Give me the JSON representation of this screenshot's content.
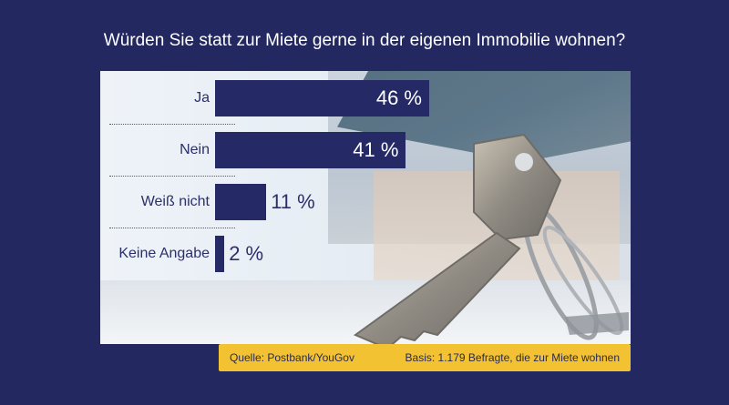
{
  "title": "Würden Sie statt zur Miete gerne in der eigenen Immobilie wohnen?",
  "chart_data": {
    "type": "bar",
    "orientation": "horizontal",
    "categories": [
      "Ja",
      "Nein",
      "Weiß nicht",
      "Keine Angabe"
    ],
    "values": [
      46,
      41,
      11,
      2
    ],
    "value_labels": [
      "46 %",
      "41 %",
      "11 %",
      "2 %"
    ],
    "unit": "%",
    "xlim": [
      0,
      100
    ],
    "grid": false,
    "colors": {
      "bar": "#252a66",
      "background": "#242861",
      "footer": "#f2c232"
    }
  },
  "footer": {
    "source": "Quelle: Postbank/YouGov",
    "basis": "Basis: 1.179 Befragte, die zur Miete wohnen"
  }
}
